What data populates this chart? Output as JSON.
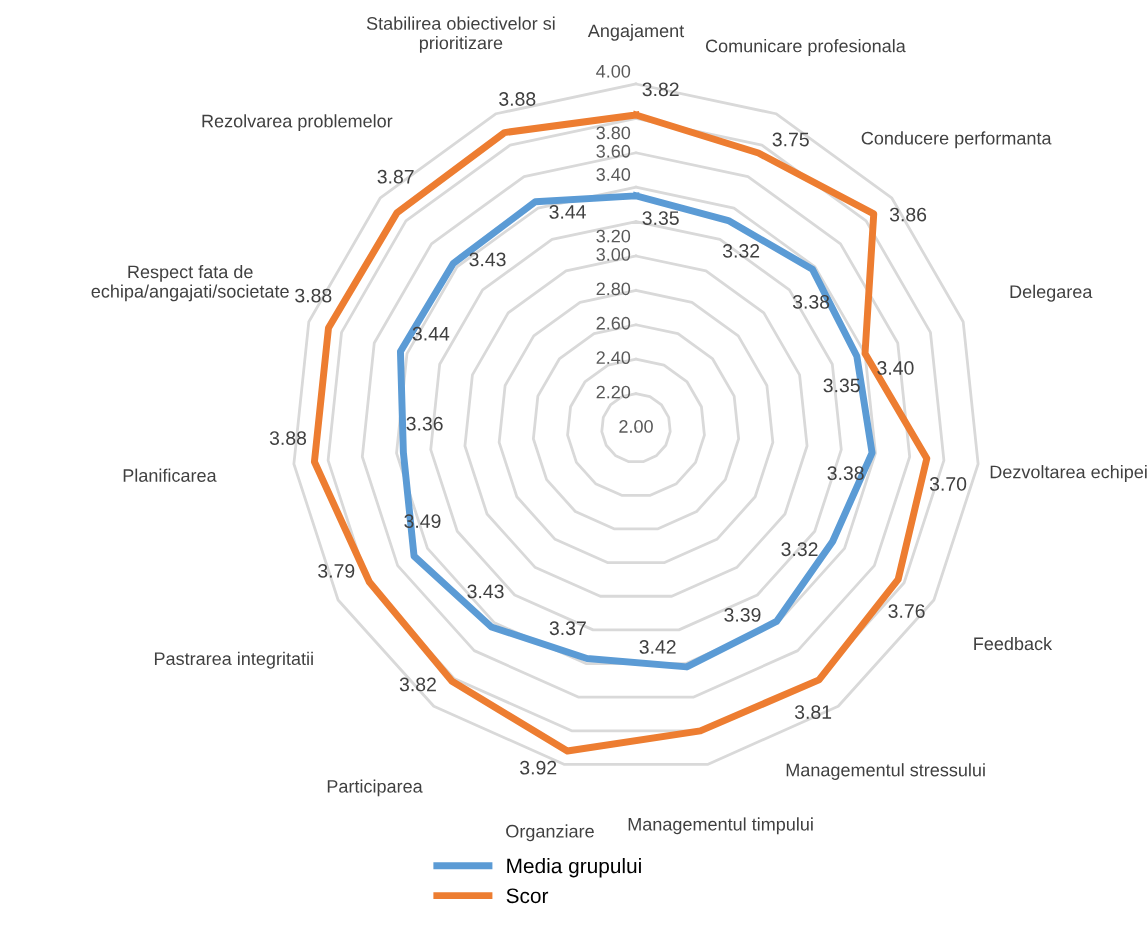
{
  "chart_data": {
    "type": "radar",
    "categories": [
      "Angajament",
      "Comunicare profesionala",
      "Conducere performanta",
      "Delegarea",
      "Dezvoltarea echipei",
      "Feedback",
      "Managementul stressului",
      "Managementul timpului",
      "Organziare",
      "Participarea",
      "Pastrarea integritatii",
      "Planificarea",
      "Respect fata de\nechipa/angajati/societate",
      "Rezolvarea problemelor",
      "Stabilirea obiectivelor si\nprioritizare"
    ],
    "series": [
      {
        "name": "Media grupului",
        "color": "#5b9bd5",
        "values": [
          3.35,
          3.32,
          3.38,
          3.35,
          3.38,
          3.32,
          3.39,
          3.42,
          3.37,
          3.43,
          3.49,
          3.36,
          3.44,
          3.43,
          3.44
        ],
        "value_labels": [
          "3.35",
          "3.32",
          "3.38",
          "3.35",
          "3.38",
          "3.32",
          "3.39",
          "3.42",
          "3.37",
          "3.43",
          "3.49",
          "3.36",
          "3.44",
          "3.43",
          "3.44"
        ]
      },
      {
        "name": "Scor",
        "color": "#ed7d31",
        "values": [
          3.82,
          3.75,
          3.86,
          3.4,
          3.7,
          3.76,
          3.81,
          3.8,
          3.92,
          3.82,
          3.79,
          3.88,
          3.88,
          3.87,
          3.88
        ],
        "value_labels": [
          "3.82",
          "3.75",
          "3.86",
          "3.40",
          "3.70",
          "3.76",
          "3.81",
          null,
          "3.92",
          "3.82",
          "3.79",
          "3.88",
          "3.88",
          "3.87",
          "3.88"
        ]
      }
    ],
    "ylim": [
      2.0,
      4.0
    ],
    "yticks": [
      {
        "value": 2.0,
        "label": "2.00"
      },
      {
        "value": 2.2,
        "label": "2.20"
      },
      {
        "value": 2.4,
        "label": "2.40"
      },
      {
        "value": 2.6,
        "label": "2.60"
      },
      {
        "value": 2.8,
        "label": "2.80"
      },
      {
        "value": 3.0,
        "label": "3.00"
      },
      {
        "value": 3.2,
        "label": "3.20"
      },
      {
        "value": 3.4,
        "label": "3.40"
      },
      {
        "value": 3.6,
        "label": "3.60"
      },
      {
        "value": 3.8,
        "label": "3.80"
      },
      {
        "value": 4.0,
        "label": "4.00"
      }
    ],
    "grid": true,
    "legend": "bottom"
  }
}
